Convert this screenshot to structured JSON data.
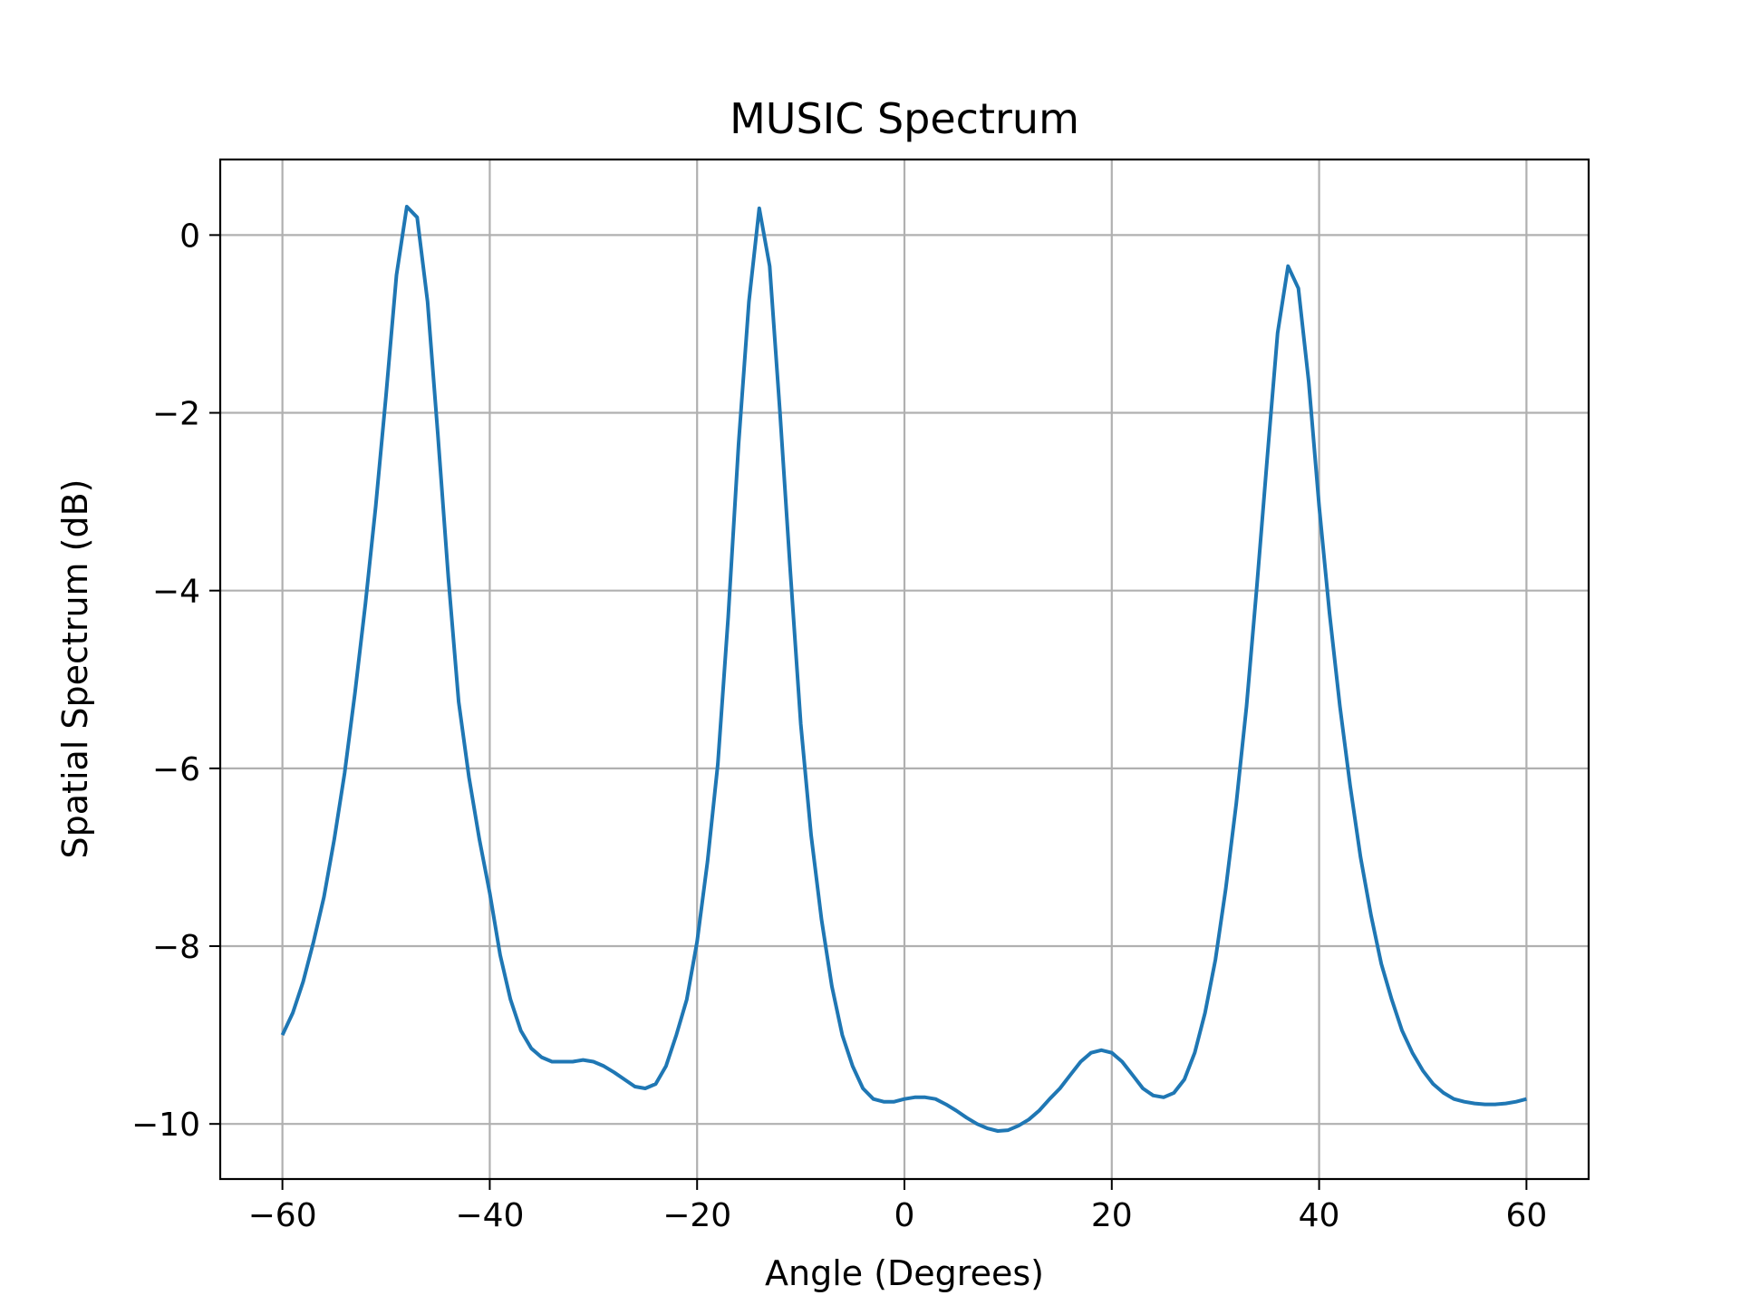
{
  "chart_data": {
    "type": "line",
    "title": "MUSIC Spectrum",
    "xlabel": "Angle (Degrees)",
    "ylabel": "Spatial Spectrum (dB)",
    "xlim": [
      -66,
      66
    ],
    "ylim": [
      -10.62,
      0.85
    ],
    "grid": true,
    "legend": "none",
    "xticks": [
      -60,
      -40,
      -20,
      0,
      20,
      40,
      60
    ],
    "xtick_labels": [
      "−60",
      "−40",
      "−20",
      "0",
      "20",
      "40",
      "60"
    ],
    "yticks": [
      0,
      -2,
      -4,
      -6,
      -8,
      -10
    ],
    "ytick_labels": [
      "0",
      "−2",
      "−4",
      "−6",
      "−8",
      "−10"
    ],
    "series": [
      {
        "color": "#1f77b4",
        "x": [
          -60,
          -59,
          -58,
          -57,
          -56,
          -55,
          -54,
          -53,
          -52,
          -51,
          -50,
          -49,
          -48,
          -47,
          -46,
          -45,
          -44,
          -43,
          -42,
          -41,
          -40,
          -39,
          -38,
          -37,
          -36,
          -35,
          -34,
          -33,
          -32,
          -31,
          -30,
          -29,
          -28,
          -27,
          -26,
          -25,
          -24,
          -23,
          -22,
          -21,
          -20,
          -19,
          -18,
          -17,
          -16,
          -15,
          -14,
          -13,
          -12,
          -11,
          -10,
          -9,
          -8,
          -7,
          -6,
          -5,
          -4,
          -3,
          -2,
          -1,
          0,
          1,
          2,
          3,
          4,
          5,
          6,
          7,
          8,
          9,
          10,
          11,
          12,
          13,
          14,
          15,
          16,
          17,
          18,
          19,
          20,
          21,
          22,
          23,
          24,
          25,
          26,
          27,
          28,
          29,
          30,
          31,
          32,
          33,
          34,
          35,
          36,
          37,
          38,
          39,
          40,
          41,
          42,
          43,
          44,
          45,
          46,
          47,
          48,
          49,
          50,
          51,
          52,
          53,
          54,
          55,
          56,
          57,
          58,
          59,
          60
        ],
        "y": [
          -9.0,
          -8.75,
          -8.4,
          -7.95,
          -7.45,
          -6.8,
          -6.05,
          -5.15,
          -4.15,
          -3.05,
          -1.8,
          -0.45,
          0.32,
          0.2,
          -0.75,
          -2.25,
          -3.85,
          -5.25,
          -6.1,
          -6.8,
          -7.4,
          -8.1,
          -8.6,
          -8.95,
          -9.15,
          -9.25,
          -9.3,
          -9.3,
          -9.3,
          -9.28,
          -9.3,
          -9.35,
          -9.42,
          -9.5,
          -9.58,
          -9.6,
          -9.55,
          -9.35,
          -9.0,
          -8.6,
          -7.95,
          -7.05,
          -5.95,
          -4.3,
          -2.35,
          -0.75,
          0.3,
          -0.35,
          -2.0,
          -3.8,
          -5.5,
          -6.75,
          -7.7,
          -8.45,
          -9.0,
          -9.35,
          -9.6,
          -9.72,
          -9.75,
          -9.75,
          -9.72,
          -9.7,
          -9.7,
          -9.72,
          -9.78,
          -9.85,
          -9.93,
          -10.0,
          -10.05,
          -10.08,
          -10.07,
          -10.02,
          -9.95,
          -9.85,
          -9.72,
          -9.6,
          -9.45,
          -9.3,
          -9.2,
          -9.17,
          -9.2,
          -9.3,
          -9.45,
          -9.6,
          -9.68,
          -9.7,
          -9.65,
          -9.5,
          -9.2,
          -8.75,
          -8.15,
          -7.35,
          -6.4,
          -5.3,
          -3.95,
          -2.5,
          -1.1,
          -0.35,
          -0.6,
          -1.65,
          -3.05,
          -4.25,
          -5.3,
          -6.2,
          -7.0,
          -7.65,
          -8.2,
          -8.6,
          -8.95,
          -9.2,
          -9.4,
          -9.55,
          -9.65,
          -9.72,
          -9.75,
          -9.77,
          -9.78,
          -9.78,
          -9.77,
          -9.75,
          -9.72
        ]
      }
    ]
  }
}
